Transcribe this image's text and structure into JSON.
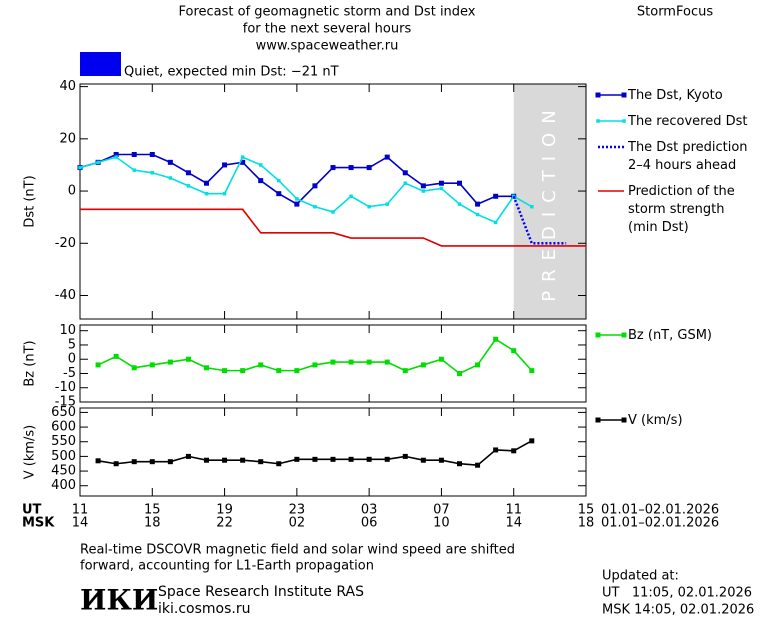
{
  "header": {
    "title_lines": [
      "Forecast of geomagnetic storm and Dst index",
      "for the next several hours",
      "www.spaceweather.ru"
    ],
    "brand": "StormFocus"
  },
  "status": {
    "text": "Quiet, expected min Dst: −21 nT",
    "color": "#0000ee"
  },
  "time_axis": {
    "xlim": [
      0,
      28
    ],
    "ut_label": "UT",
    "msk_label": "MSK",
    "ut_ticks": [
      {
        "value": 0,
        "label": "11"
      },
      {
        "value": 4,
        "label": "15"
      },
      {
        "value": 8,
        "label": "19"
      },
      {
        "value": 12,
        "label": "23"
      },
      {
        "value": 16,
        "label": "03"
      },
      {
        "value": 20,
        "label": "07"
      },
      {
        "value": 24,
        "label": "11"
      },
      {
        "value": 28,
        "label": "15"
      }
    ],
    "msk_ticks": [
      {
        "value": 0,
        "label": "14"
      },
      {
        "value": 4,
        "label": "18"
      },
      {
        "value": 8,
        "label": "22"
      },
      {
        "value": 12,
        "label": "02"
      },
      {
        "value": 16,
        "label": "06"
      },
      {
        "value": 20,
        "label": "10"
      },
      {
        "value": 24,
        "label": "14"
      },
      {
        "value": 28,
        "label": "18"
      }
    ],
    "ut_dates": "01.01–02.01.2026",
    "msk_dates": "01.01–02.01.2026"
  },
  "chart_data": [
    {
      "type": "line",
      "y_label": "Dst (nT)",
      "ylim": [
        -49,
        41
      ],
      "yticks": [
        -40,
        -20,
        0,
        20,
        40
      ],
      "prediction": {
        "xlim": [
          24,
          28
        ],
        "label": "PREDICTION",
        "color": "#d9d9d9"
      },
      "series": [
        {
          "name": "The Dst, Kyoto",
          "color": "#0000cc",
          "marker": "square",
          "dashed": false,
          "x": [
            0,
            1,
            2,
            3,
            4,
            5,
            6,
            7,
            8,
            9,
            10,
            11,
            12,
            13,
            14,
            15,
            16,
            17,
            18,
            19,
            20,
            21,
            22,
            23,
            24
          ],
          "values": [
            9,
            11,
            14,
            14,
            14,
            11,
            7,
            3,
            10,
            11,
            4,
            -1,
            -5,
            2,
            9,
            9,
            9,
            13,
            7,
            2,
            3,
            3,
            -5,
            -2,
            -2
          ]
        },
        {
          "name": "The recovered Dst",
          "color": "#00e0e0",
          "marker": "square-small",
          "dashed": false,
          "x": [
            0,
            1,
            2,
            3,
            4,
            5,
            6,
            7,
            8,
            9,
            10,
            11,
            12,
            13,
            14,
            15,
            16,
            17,
            18,
            19,
            20,
            21,
            22,
            23,
            24,
            25
          ],
          "values": [
            9,
            11,
            13,
            8,
            7,
            5,
            2,
            -1,
            -1,
            13,
            10,
            4,
            -3,
            -6,
            -8,
            -2,
            -6,
            -5,
            3,
            0,
            1,
            -5,
            -9,
            -12,
            -2,
            -6
          ]
        },
        {
          "name": "The Dst prediction\n2–4 hours ahead",
          "color": "#0000ff",
          "marker": "none",
          "dashed": true,
          "x": [
            24,
            25,
            26.9
          ],
          "values": [
            -2,
            -20,
            -20
          ]
        },
        {
          "name": "Prediction of the\nstorm strength\n(min Dst)",
          "color": "#e00000",
          "marker": "none",
          "dashed": false,
          "x": [
            0,
            9,
            10,
            14,
            15,
            19,
            20,
            28
          ],
          "values": [
            -7,
            -7,
            -16,
            -16,
            -18,
            -18,
            -21,
            -21
          ]
        }
      ]
    },
    {
      "type": "line",
      "y_label": "Bz (nT)",
      "ylim": [
        -15,
        12
      ],
      "yticks": [
        -15,
        -10,
        -5,
        0,
        5,
        10
      ],
      "series": [
        {
          "name": "Bz (nT, GSM)",
          "color": "#00dd00",
          "marker": "square",
          "dashed": false,
          "x": [
            1,
            2,
            3,
            4,
            5,
            6,
            7,
            8,
            9,
            10,
            11,
            12,
            13,
            14,
            15,
            16,
            17,
            18,
            19,
            20,
            21,
            22,
            23,
            24,
            25
          ],
          "values": [
            -2,
            1,
            -3,
            -2,
            -1,
            0,
            -3,
            -4,
            -4,
            -2,
            -4,
            -4,
            -2,
            -1,
            -1,
            -1,
            -1,
            -4,
            -2,
            0,
            -5,
            -2,
            7,
            3,
            -4
          ]
        }
      ]
    },
    {
      "type": "line",
      "y_label": "V (km/s)",
      "ylim": [
        365,
        665
      ],
      "yticks": [
        400,
        450,
        500,
        550,
        600,
        650
      ],
      "series": [
        {
          "name": "V (km/s)",
          "color": "#000000",
          "marker": "square",
          "dashed": false,
          "x": [
            1,
            2,
            3,
            4,
            5,
            6,
            7,
            8,
            9,
            10,
            11,
            12,
            13,
            14,
            15,
            16,
            17,
            18,
            19,
            20,
            21,
            22,
            23,
            24,
            25
          ],
          "values": [
            485,
            475,
            482,
            482,
            482,
            500,
            487,
            487,
            487,
            482,
            475,
            490,
            490,
            490,
            490,
            490,
            490,
            500,
            487,
            487,
            475,
            470,
            522,
            519,
            553
          ]
        }
      ]
    }
  ],
  "footer": {
    "note": [
      "Real-time DSCOVR magnetic field and solar wind speed are shifted",
      "forward, accounting for L1-Earth propagation"
    ],
    "logo": "ИКИ",
    "institute": "Space Research Institute RAS",
    "site": "iki.cosmos.ru",
    "updated": [
      "Updated at:",
      "UT   11:05, 02.01.2026",
      "MSK 14:05, 02.01.2026"
    ]
  }
}
